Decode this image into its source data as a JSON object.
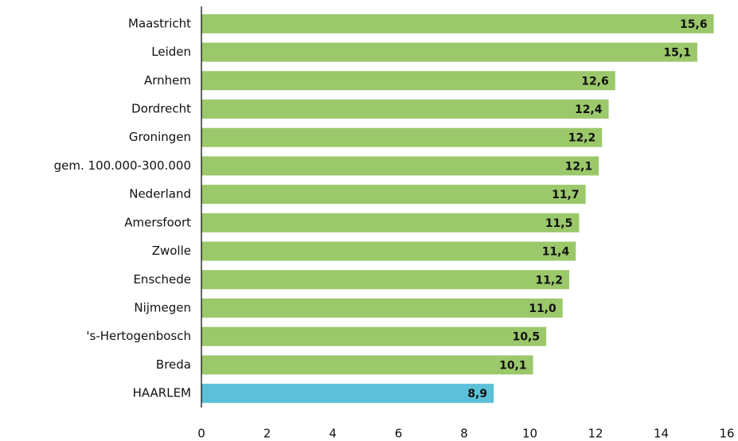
{
  "chart_data": {
    "type": "barh",
    "categories": [
      "Maastricht",
      "Leiden",
      "Arnhem",
      "Dordrecht",
      "Groningen",
      "gem. 100.000-300.000",
      "Nederland",
      "Amersfoort",
      "Zwolle",
      "Enschede",
      "Nijmegen",
      "'s-Hertogenbosch",
      "Breda",
      "HAARLEM"
    ],
    "values": [
      15.6,
      15.1,
      12.6,
      12.4,
      12.2,
      12.1,
      11.7,
      11.5,
      11.4,
      11.2,
      11.0,
      10.5,
      10.1,
      8.9
    ],
    "value_labels": [
      "15,6",
      "15,1",
      "12,6",
      "12,4",
      "12,2",
      "12,1",
      "11,7",
      "11,5",
      "11,4",
      "11,2",
      "11,0",
      "10,5",
      "10,1",
      "8,9"
    ],
    "colors": [
      "#9bc86a",
      "#9bc86a",
      "#9bc86a",
      "#9bc86a",
      "#9bc86a",
      "#9bc86a",
      "#9bc86a",
      "#9bc86a",
      "#9bc86a",
      "#9bc86a",
      "#9bc86a",
      "#9bc86a",
      "#9bc86a",
      "#5bc0d8"
    ],
    "xlim": [
      0,
      16
    ],
    "xticks": [
      0,
      2,
      4,
      6,
      8,
      10,
      12,
      14,
      16
    ],
    "grid": false
  }
}
